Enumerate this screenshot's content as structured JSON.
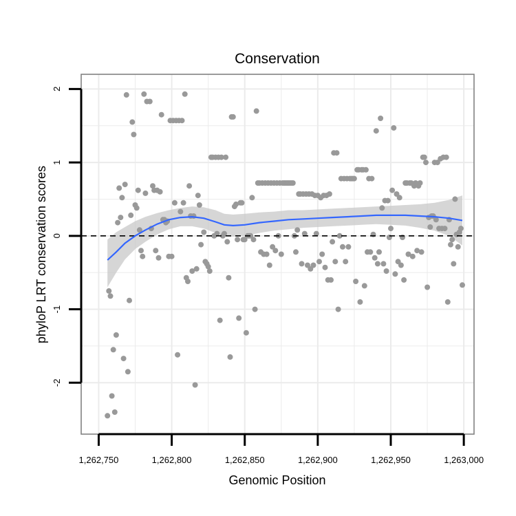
{
  "chart_data": {
    "type": "scatter",
    "title": "Conservation",
    "xlabel": "Genomic Position",
    "ylabel": "phyloP LRT conservation scores",
    "xlim": [
      1262738,
      1263007
    ],
    "ylim": [
      -2.7,
      2.2
    ],
    "x_ticks": [
      1262750,
      1262800,
      1262850,
      1262900,
      1262950,
      1263000
    ],
    "x_tick_labels": [
      "1,262,750",
      "1,262,800",
      "1,262,850",
      "1,262,900",
      "1,262,950",
      "1,263,000"
    ],
    "y_ticks": [
      -2,
      -1,
      0,
      1,
      2
    ],
    "y_tick_labels": [
      "-2",
      "-1",
      "0",
      "1",
      "2"
    ],
    "grid": true,
    "reference_line": {
      "y": 0,
      "style": "dashed",
      "color": "#000000"
    },
    "colors": {
      "points": "#999999",
      "smooth": "#3366FF",
      "band": "#C8C8C8",
      "panel_border": "#808080",
      "grid": "#EBEBEB"
    },
    "points": [
      [
        1262756,
        -2.45
      ],
      [
        1262757,
        -0.75
      ],
      [
        1262758,
        -0.82
      ],
      [
        1262759,
        -2.18
      ],
      [
        1262760,
        -1.55
      ],
      [
        1262761,
        -2.4
      ],
      [
        1262762,
        -1.35
      ],
      [
        1262763,
        0.18
      ],
      [
        1262764,
        0.65
      ],
      [
        1262765,
        0.25
      ],
      [
        1262766,
        0.52
      ],
      [
        1262767,
        -1.67
      ],
      [
        1262768,
        0.7
      ],
      [
        1262769,
        1.92
      ],
      [
        1262770,
        -1.85
      ],
      [
        1262771,
        -0.88
      ],
      [
        1262772,
        0.28
      ],
      [
        1262773,
        1.55
      ],
      [
        1262774,
        1.38
      ],
      [
        1262775,
        0.42
      ],
      [
        1262776,
        0.38
      ],
      [
        1262777,
        0.62
      ],
      [
        1262778,
        0.08
      ],
      [
        1262779,
        -0.2
      ],
      [
        1262780,
        -0.28
      ],
      [
        1262781,
        1.93
      ],
      [
        1262782,
        0.58
      ],
      [
        1262783,
        1.83
      ],
      [
        1262785,
        1.83
      ],
      [
        1262786,
        0.1
      ],
      [
        1262787,
        0.68
      ],
      [
        1262788,
        0.62
      ],
      [
        1262789,
        -0.2
      ],
      [
        1262790,
        0.62
      ],
      [
        1262791,
        -0.3
      ],
      [
        1262792,
        0.6
      ],
      [
        1262793,
        1.65
      ],
      [
        1262794,
        0.22
      ],
      [
        1262795,
        0.22
      ],
      [
        1262796,
        0.18
      ],
      [
        1262797,
        0.2
      ],
      [
        1262798,
        -0.28
      ],
      [
        1262799,
        1.57
      ],
      [
        1262800,
        -0.28
      ],
      [
        1262801,
        1.57
      ],
      [
        1262802,
        0.45
      ],
      [
        1262803,
        1.57
      ],
      [
        1262804,
        -1.62
      ],
      [
        1262805,
        1.57
      ],
      [
        1262806,
        0.33
      ],
      [
        1262807,
        1.57
      ],
      [
        1262808,
        0.45
      ],
      [
        1262809,
        1.93
      ],
      [
        1262810,
        -0.57
      ],
      [
        1262811,
        -0.62
      ],
      [
        1262812,
        0.68
      ],
      [
        1262813,
        0.27
      ],
      [
        1262814,
        -0.48
      ],
      [
        1262815,
        0.27
      ],
      [
        1262816,
        -2.03
      ],
      [
        1262817,
        -0.45
      ],
      [
        1262818,
        0.55
      ],
      [
        1262819,
        0.42
      ],
      [
        1262820,
        -0.12
      ],
      [
        1262822,
        0.05
      ],
      [
        1262823,
        -0.35
      ],
      [
        1262824,
        -0.38
      ],
      [
        1262825,
        -0.42
      ],
      [
        1262826,
        -0.48
      ],
      [
        1262827,
        1.07
      ],
      [
        1262828,
        1.07
      ],
      [
        1262829,
        0.0
      ],
      [
        1262830,
        1.07
      ],
      [
        1262831,
        0.03
      ],
      [
        1262832,
        1.07
      ],
      [
        1262833,
        -1.15
      ],
      [
        1262834,
        1.07
      ],
      [
        1262835,
        0.0
      ],
      [
        1262836,
        0.03
      ],
      [
        1262837,
        1.07
      ],
      [
        1262838,
        -0.08
      ],
      [
        1262839,
        -0.57
      ],
      [
        1262840,
        -1.65
      ],
      [
        1262841,
        1.62
      ],
      [
        1262842,
        1.62
      ],
      [
        1262843,
        0.4
      ],
      [
        1262844,
        0.43
      ],
      [
        1262845,
        -0.05
      ],
      [
        1262846,
        -1.12
      ],
      [
        1262847,
        0.45
      ],
      [
        1262848,
        0.45
      ],
      [
        1262849,
        -0.05
      ],
      [
        1262850,
        -0.05
      ],
      [
        1262851,
        -1.32
      ],
      [
        1262852,
        0.0
      ],
      [
        1262853,
        0.0
      ],
      [
        1262854,
        0.0
      ],
      [
        1262855,
        0.52
      ],
      [
        1262856,
        -0.05
      ],
      [
        1262857,
        -1.0
      ],
      [
        1262858,
        1.7
      ],
      [
        1262859,
        0.72
      ],
      [
        1262860,
        0.72
      ],
      [
        1262861,
        -0.22
      ],
      [
        1262862,
        0.72
      ],
      [
        1262863,
        -0.25
      ],
      [
        1262864,
        0.72
      ],
      [
        1262865,
        -0.25
      ],
      [
        1262866,
        0.72
      ],
      [
        1262867,
        -0.4
      ],
      [
        1262868,
        0.72
      ],
      [
        1262869,
        -0.15
      ],
      [
        1262870,
        0.72
      ],
      [
        1262871,
        -0.2
      ],
      [
        1262872,
        0.72
      ],
      [
        1262873,
        0.0
      ],
      [
        1262874,
        0.72
      ],
      [
        1262875,
        -0.25
      ],
      [
        1262876,
        0.72
      ],
      [
        1262877,
        0.72
      ],
      [
        1262878,
        0.72
      ],
      [
        1262879,
        0.72
      ],
      [
        1262880,
        0.72
      ],
      [
        1262881,
        0.72
      ],
      [
        1262882,
        0.72
      ],
      [
        1262883,
        0.72
      ],
      [
        1262884,
        0.0
      ],
      [
        1262885,
        -0.22
      ],
      [
        1262886,
        0.08
      ],
      [
        1262887,
        0.57
      ],
      [
        1262888,
        0.57
      ],
      [
        1262889,
        -0.38
      ],
      [
        1262890,
        0.57
      ],
      [
        1262891,
        0.03
      ],
      [
        1262892,
        0.57
      ],
      [
        1262893,
        -0.4
      ],
      [
        1262894,
        0.57
      ],
      [
        1262895,
        -0.45
      ],
      [
        1262896,
        0.57
      ],
      [
        1262897,
        -0.4
      ],
      [
        1262898,
        0.55
      ],
      [
        1262899,
        0.03
      ],
      [
        1262900,
        0.55
      ],
      [
        1262901,
        -0.35
      ],
      [
        1262902,
        0.52
      ],
      [
        1262903,
        -0.25
      ],
      [
        1262904,
        0.55
      ],
      [
        1262905,
        -0.43
      ],
      [
        1262906,
        0.55
      ],
      [
        1262907,
        -0.6
      ],
      [
        1262908,
        0.57
      ],
      [
        1262909,
        -0.6
      ],
      [
        1262910,
        -0.08
      ],
      [
        1262911,
        1.13
      ],
      [
        1262912,
        -0.35
      ],
      [
        1262913,
        1.13
      ],
      [
        1262914,
        -1.0
      ],
      [
        1262915,
        0.0
      ],
      [
        1262916,
        0.78
      ],
      [
        1262917,
        -0.15
      ],
      [
        1262918,
        0.78
      ],
      [
        1262919,
        -0.35
      ],
      [
        1262920,
        0.78
      ],
      [
        1262921,
        -0.15
      ],
      [
        1262922,
        0.78
      ],
      [
        1262923,
        0.78
      ],
      [
        1262924,
        0.78
      ],
      [
        1262925,
        0.78
      ],
      [
        1262926,
        -0.62
      ],
      [
        1262927,
        0.9
      ],
      [
        1262928,
        0.9
      ],
      [
        1262929,
        -0.9
      ],
      [
        1262930,
        0.9
      ],
      [
        1262931,
        0.9
      ],
      [
        1262932,
        -0.68
      ],
      [
        1262933,
        0.9
      ],
      [
        1262934,
        -0.22
      ],
      [
        1262935,
        0.78
      ],
      [
        1262936,
        -0.22
      ],
      [
        1262937,
        0.78
      ],
      [
        1262938,
        0.02
      ],
      [
        1262939,
        -0.3
      ],
      [
        1262940,
        1.43
      ],
      [
        1262941,
        -0.38
      ],
      [
        1262942,
        -0.22
      ],
      [
        1262943,
        1.6
      ],
      [
        1262944,
        0.38
      ],
      [
        1262945,
        -0.38
      ],
      [
        1262946,
        0.48
      ],
      [
        1262947,
        -0.48
      ],
      [
        1262948,
        0.48
      ],
      [
        1262949,
        -0.02
      ],
      [
        1262950,
        0.1
      ],
      [
        1262951,
        0.62
      ],
      [
        1262952,
        1.47
      ],
      [
        1262953,
        -0.52
      ],
      [
        1262954,
        0.57
      ],
      [
        1262955,
        -0.35
      ],
      [
        1262956,
        0.52
      ],
      [
        1262957,
        -0.4
      ],
      [
        1262958,
        -0.02
      ],
      [
        1262959,
        -0.6
      ],
      [
        1262960,
        0.72
      ],
      [
        1262961,
        0.72
      ],
      [
        1262962,
        -0.25
      ],
      [
        1262963,
        0.72
      ],
      [
        1262964,
        0.72
      ],
      [
        1262965,
        -0.28
      ],
      [
        1262966,
        0.68
      ],
      [
        1262967,
        0.72
      ],
      [
        1262968,
        -0.2
      ],
      [
        1262969,
        0.68
      ],
      [
        1262970,
        0.72
      ],
      [
        1262971,
        -0.22
      ],
      [
        1262972,
        1.07
      ],
      [
        1262973,
        1.07
      ],
      [
        1262974,
        1.0
      ],
      [
        1262975,
        -0.7
      ],
      [
        1262976,
        0.25
      ],
      [
        1262977,
        0.12
      ],
      [
        1262978,
        0.27
      ],
      [
        1262979,
        0.27
      ],
      [
        1262980,
        1.0
      ],
      [
        1262981,
        0.22
      ],
      [
        1262982,
        1.0
      ],
      [
        1262983,
        0.1
      ],
      [
        1262984,
        1.05
      ],
      [
        1262985,
        0.1
      ],
      [
        1262986,
        1.07
      ],
      [
        1262987,
        0.1
      ],
      [
        1262988,
        1.07
      ],
      [
        1262989,
        -0.9
      ],
      [
        1262990,
        0.22
      ],
      [
        1262991,
        -0.12
      ],
      [
        1262992,
        -0.05
      ],
      [
        1262993,
        -0.38
      ],
      [
        1262994,
        0.5
      ],
      [
        1262995,
        0.02
      ],
      [
        1262996,
        -0.15
      ],
      [
        1262997,
        0.05
      ],
      [
        1262998,
        0.1
      ],
      [
        1262999,
        -0.67
      ]
    ],
    "smooth": [
      [
        1262756,
        -0.33
      ],
      [
        1262762,
        -0.22
      ],
      [
        1262768,
        -0.1
      ],
      [
        1262775,
        0.0
      ],
      [
        1262782,
        0.08
      ],
      [
        1262790,
        0.16
      ],
      [
        1262798,
        0.22
      ],
      [
        1262806,
        0.25
      ],
      [
        1262814,
        0.26
      ],
      [
        1262822,
        0.24
      ],
      [
        1262830,
        0.19
      ],
      [
        1262836,
        0.15
      ],
      [
        1262842,
        0.14
      ],
      [
        1262850,
        0.15
      ],
      [
        1262860,
        0.18
      ],
      [
        1262870,
        0.2
      ],
      [
        1262880,
        0.22
      ],
      [
        1262890,
        0.23
      ],
      [
        1262900,
        0.24
      ],
      [
        1262910,
        0.25
      ],
      [
        1262920,
        0.26
      ],
      [
        1262930,
        0.27
      ],
      [
        1262940,
        0.28
      ],
      [
        1262950,
        0.28
      ],
      [
        1262960,
        0.28
      ],
      [
        1262970,
        0.27
      ],
      [
        1262980,
        0.26
      ],
      [
        1262990,
        0.24
      ],
      [
        1262999,
        0.21
      ]
    ],
    "smooth_upper": [
      [
        1262756,
        -0.05
      ],
      [
        1262762,
        0.05
      ],
      [
        1262768,
        0.12
      ],
      [
        1262775,
        0.2
      ],
      [
        1262782,
        0.26
      ],
      [
        1262790,
        0.31
      ],
      [
        1262798,
        0.35
      ],
      [
        1262806,
        0.38
      ],
      [
        1262814,
        0.4
      ],
      [
        1262822,
        0.39
      ],
      [
        1262830,
        0.35
      ],
      [
        1262836,
        0.3
      ],
      [
        1262842,
        0.29
      ],
      [
        1262850,
        0.3
      ],
      [
        1262860,
        0.32
      ],
      [
        1262870,
        0.33
      ],
      [
        1262880,
        0.35
      ],
      [
        1262890,
        0.35
      ],
      [
        1262900,
        0.36
      ],
      [
        1262910,
        0.37
      ],
      [
        1262920,
        0.38
      ],
      [
        1262930,
        0.39
      ],
      [
        1262940,
        0.4
      ],
      [
        1262950,
        0.41
      ],
      [
        1262960,
        0.42
      ],
      [
        1262970,
        0.43
      ],
      [
        1262980,
        0.45
      ],
      [
        1262990,
        0.49
      ],
      [
        1262999,
        0.55
      ]
    ],
    "smooth_lower": [
      [
        1262756,
        -0.7
      ],
      [
        1262762,
        -0.5
      ],
      [
        1262768,
        -0.32
      ],
      [
        1262775,
        -0.18
      ],
      [
        1262782,
        -0.08
      ],
      [
        1262790,
        0.02
      ],
      [
        1262798,
        0.09
      ],
      [
        1262806,
        0.13
      ],
      [
        1262814,
        0.13
      ],
      [
        1262822,
        0.1
      ],
      [
        1262830,
        0.04
      ],
      [
        1262836,
        0.0
      ],
      [
        1262842,
        -0.01
      ],
      [
        1262850,
        0.0
      ],
      [
        1262860,
        0.04
      ],
      [
        1262870,
        0.07
      ],
      [
        1262880,
        0.09
      ],
      [
        1262890,
        0.11
      ],
      [
        1262900,
        0.12
      ],
      [
        1262910,
        0.13
      ],
      [
        1262920,
        0.14
      ],
      [
        1262930,
        0.15
      ],
      [
        1262940,
        0.16
      ],
      [
        1262950,
        0.15
      ],
      [
        1262960,
        0.14
      ],
      [
        1262970,
        0.11
      ],
      [
        1262980,
        0.07
      ],
      [
        1262990,
        0.0
      ],
      [
        1262999,
        -0.13
      ]
    ]
  }
}
